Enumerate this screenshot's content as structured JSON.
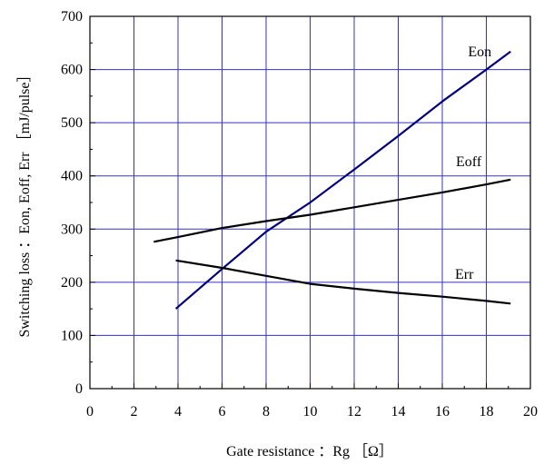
{
  "chart_data": {
    "type": "line",
    "title": "",
    "xlabel": "Gate resistance ：Rg ［Ω］",
    "ylabel": "Switching loss ：Eon, Eoff, Err ［mJ/pulse］",
    "xlim": [
      0,
      20
    ],
    "ylim": [
      0,
      700
    ],
    "x_ticks": [
      "0",
      "2",
      "4",
      "6",
      "8",
      "10",
      "12",
      "14",
      "16",
      "18",
      "20"
    ],
    "y_ticks": [
      "0",
      "100",
      "200",
      "300",
      "400",
      "500",
      "600",
      "700"
    ],
    "grid": true,
    "colors": {
      "Eon": "#00007f",
      "Eoff": "#000000",
      "Err": "#000000",
      "grid": "#3333cc"
    },
    "series": [
      {
        "name": "Eon",
        "x": [
          3.9,
          6,
          8,
          10,
          12,
          14,
          16,
          18,
          19.1
        ],
        "y": [
          150,
          225,
          295,
          350,
          412,
          475,
          540,
          600,
          634
        ]
      },
      {
        "name": "Eoff",
        "x": [
          2.9,
          4,
          6,
          8,
          10,
          12,
          14,
          16,
          18,
          19.1
        ],
        "y": [
          276,
          285,
          302,
          315,
          327,
          341,
          355,
          369,
          384,
          393
        ]
      },
      {
        "name": "Err",
        "x": [
          3.9,
          6,
          8,
          10,
          12,
          14,
          16,
          18,
          19.1
        ],
        "y": [
          241,
          227,
          212,
          197,
          188,
          180,
          173,
          165,
          160
        ]
      }
    ]
  }
}
